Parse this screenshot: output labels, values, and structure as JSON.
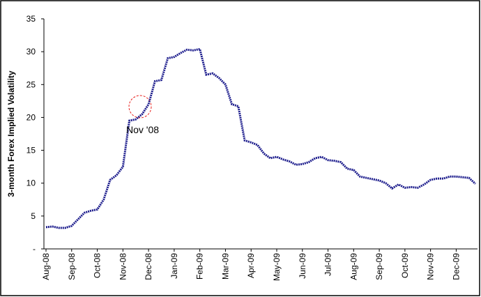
{
  "chart_data": {
    "type": "line",
    "y_label": "3-month Forex Implied Volatility",
    "annotation": "Nov '08",
    "categories": [
      "Aug-08",
      null,
      null,
      null,
      "Sep-08",
      null,
      null,
      null,
      "Oct-08",
      null,
      null,
      null,
      "Nov-08",
      null,
      null,
      null,
      "Dec-08",
      null,
      null,
      null,
      "Jan-09",
      null,
      null,
      null,
      "Feb-09",
      null,
      null,
      null,
      "Mar-09",
      null,
      null,
      null,
      "Apr-09",
      null,
      null,
      null,
      "May-09",
      null,
      null,
      null,
      "Jun-09",
      null,
      null,
      null,
      "Jul-09",
      null,
      null,
      null,
      "Aug-09",
      null,
      null,
      null,
      "Sep-09",
      null,
      null,
      null,
      "Oct-09",
      null,
      null,
      null,
      "Nov-09",
      null,
      null,
      null,
      "Dec-09",
      null,
      null,
      null
    ],
    "series": [
      {
        "name": "3-month Forex Implied Volatility",
        "color": "#1c1c8c",
        "values": [
          3.3,
          3.4,
          3.2,
          3.2,
          3.5,
          4.5,
          5.5,
          5.8,
          6.0,
          7.5,
          10.5,
          11.2,
          12.5,
          19.5,
          19.7,
          20.5,
          22,
          25.5,
          25.7,
          29,
          29.2,
          29.8,
          30.3,
          30.2,
          30.4,
          26.5,
          26.7,
          26,
          25,
          22,
          21.7,
          16.5,
          16.2,
          15.8,
          14.5,
          13.8,
          14,
          13.6,
          13.3,
          12.8,
          12.9,
          13.2,
          13.8,
          14,
          13.5,
          13.4,
          13.2,
          12.2,
          12,
          11,
          10.8,
          10.6,
          10.4,
          10,
          9.2,
          9.8,
          9.3,
          9.4,
          9.3,
          9.8,
          10.5,
          10.7,
          10.7,
          11,
          11,
          10.9,
          10.8,
          9.9
        ]
      }
    ],
    "ylim": [
      0,
      35
    ],
    "yticks": [
      {
        "value": 0,
        "label": "-"
      },
      5,
      10,
      15,
      20,
      25,
      30,
      35
    ],
    "annotation_color": "#e8201c",
    "grid": false
  }
}
